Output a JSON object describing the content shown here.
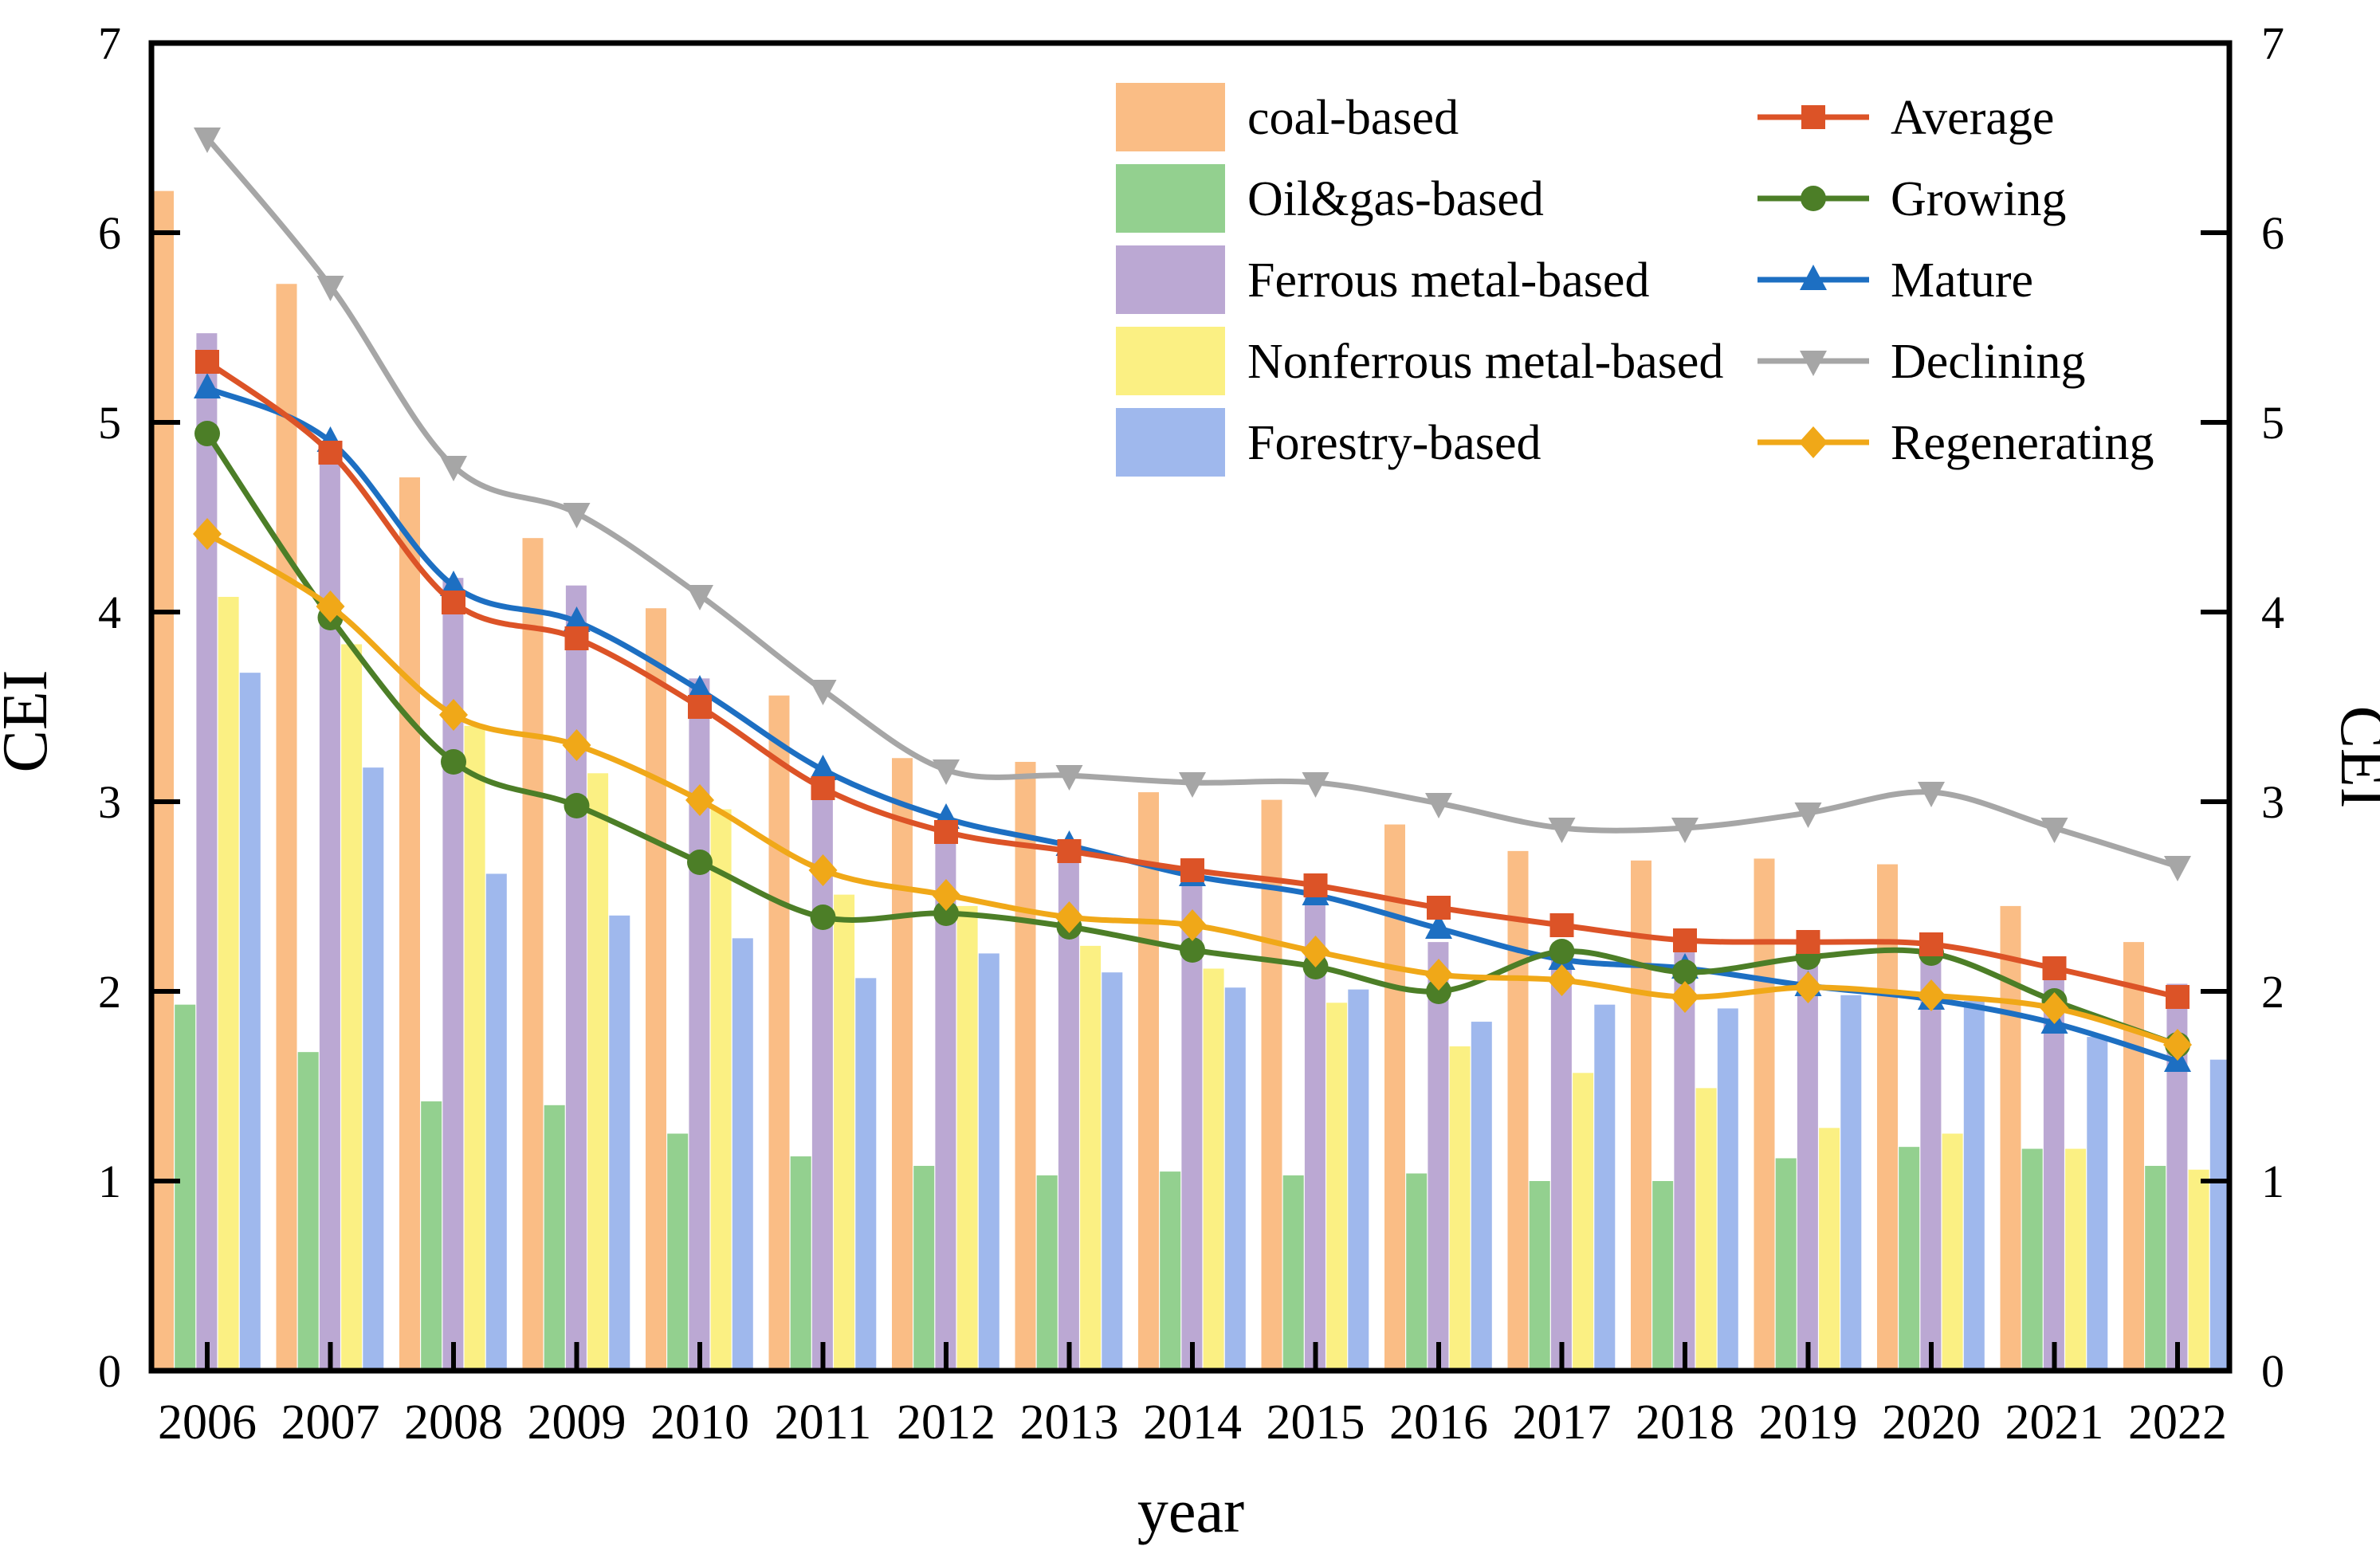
{
  "chart_data": {
    "type": "bar+line",
    "title": "",
    "xlabel": "year",
    "ylabel_left": "CEI",
    "ylabel_right": "CEI",
    "ylim": [
      0,
      7
    ],
    "yticks": [
      0,
      1,
      2,
      3,
      4,
      5,
      6,
      7
    ],
    "grid": false,
    "legend_position": "top-inside",
    "categories": [
      2006,
      2007,
      2008,
      2009,
      2010,
      2011,
      2012,
      2013,
      2014,
      2015,
      2016,
      2017,
      2018,
      2019,
      2020,
      2021,
      2022
    ],
    "bar_series": [
      {
        "name": "coal-based",
        "color": "#FABD85",
        "values": [
          6.22,
          5.73,
          4.71,
          4.39,
          4.02,
          3.56,
          3.23,
          3.21,
          3.05,
          3.01,
          2.88,
          2.74,
          2.69,
          2.7,
          2.67,
          2.45,
          2.26
        ]
      },
      {
        "name": "Oil&gas-based",
        "color": "#93D08F",
        "values": [
          1.93,
          1.68,
          1.42,
          1.4,
          1.25,
          1.13,
          1.08,
          1.03,
          1.05,
          1.03,
          1.04,
          1.0,
          1.0,
          1.12,
          1.18,
          1.17,
          1.08
        ]
      },
      {
        "name": "Ferrous metal-based",
        "color": "#BBA8D3",
        "values": [
          5.47,
          4.78,
          4.18,
          4.14,
          3.65,
          3.06,
          2.85,
          2.72,
          2.6,
          2.54,
          2.26,
          2.24,
          2.21,
          2.22,
          2.21,
          2.16,
          2.04
        ]
      },
      {
        "name": "Nonferrous metal-based",
        "color": "#FBF083",
        "values": [
          4.08,
          3.83,
          3.4,
          3.15,
          2.96,
          2.51,
          2.45,
          2.24,
          2.12,
          1.94,
          1.71,
          1.57,
          1.49,
          1.28,
          1.25,
          1.17,
          1.06
        ]
      },
      {
        "name": "Forestry-based",
        "color": "#9FB8ED",
        "values": [
          3.68,
          3.18,
          2.62,
          2.4,
          2.28,
          2.07,
          2.2,
          2.1,
          2.02,
          2.01,
          1.84,
          1.93,
          1.91,
          1.98,
          1.95,
          1.76,
          1.64
        ]
      }
    ],
    "line_series": [
      {
        "name": "Declining",
        "color": "#A6A6A6",
        "marker": "triangle-down",
        "values": [
          6.5,
          5.72,
          4.77,
          4.52,
          4.09,
          3.59,
          3.17,
          3.14,
          3.1,
          3.1,
          2.99,
          2.86,
          2.86,
          2.94,
          3.05,
          2.86,
          2.66
        ]
      },
      {
        "name": "Mature",
        "color": "#1D6FC2",
        "marker": "triangle-up",
        "values": [
          5.18,
          4.9,
          4.14,
          3.95,
          3.59,
          3.17,
          2.91,
          2.77,
          2.61,
          2.51,
          2.33,
          2.17,
          2.12,
          2.03,
          1.96,
          1.83,
          1.63
        ]
      },
      {
        "name": "Growing",
        "color": "#4C7E27",
        "marker": "circle",
        "values": [
          4.94,
          3.97,
          3.21,
          2.98,
          2.68,
          2.39,
          2.41,
          2.34,
          2.22,
          2.13,
          2.0,
          2.21,
          2.1,
          2.18,
          2.2,
          1.95,
          1.72
        ]
      },
      {
        "name": "Regenerating",
        "color": "#F0A818",
        "marker": "diamond",
        "values": [
          4.41,
          4.03,
          3.46,
          3.3,
          3.01,
          2.64,
          2.51,
          2.39,
          2.35,
          2.21,
          2.09,
          2.06,
          1.97,
          2.02,
          1.98,
          1.91,
          1.72
        ]
      },
      {
        "name": "Average",
        "color": "#DC5327",
        "marker": "square",
        "values": [
          5.32,
          4.84,
          4.05,
          3.86,
          3.5,
          3.07,
          2.84,
          2.74,
          2.64,
          2.56,
          2.44,
          2.35,
          2.27,
          2.26,
          2.25,
          2.12,
          1.97
        ]
      }
    ],
    "legend": {
      "bar_labels": [
        "coal-based",
        "Oil&gas-based",
        "Ferrous metal-based",
        "Nonferrous metal-based",
        "Forestry-based"
      ],
      "line_labels": [
        "Average",
        "Growing",
        "Mature",
        "Declining",
        "Regenerating"
      ]
    }
  }
}
